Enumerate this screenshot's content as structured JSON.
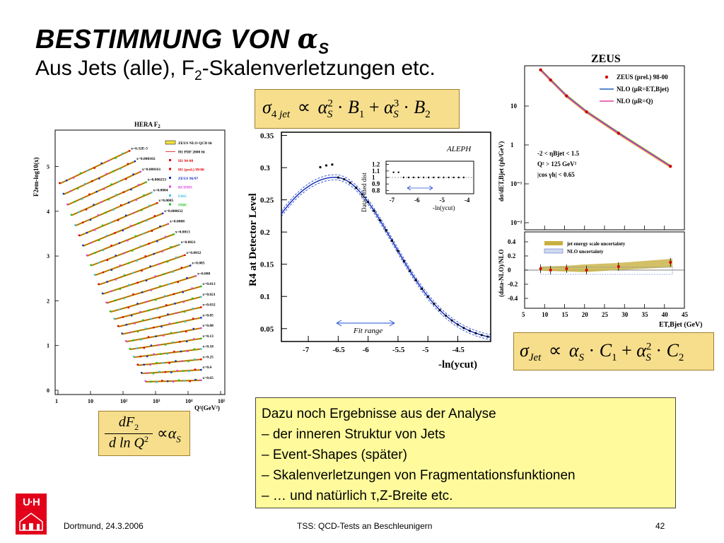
{
  "title": {
    "main": "BESTIMMUNG VON ",
    "alpha": "α",
    "sub": "S"
  },
  "subtitle": {
    "before": "Aus Jets (alle), F",
    "sub": "2",
    "after": "-Skalenverletzungen etc."
  },
  "formula_top": {
    "sigma": "σ",
    "sub1": "4 jet",
    "prop": "∝",
    "alpha": "α",
    "s": "S",
    "exp1": "2",
    "dot": "·",
    "b": "B",
    "b1": "1",
    "plus": "+",
    "exp2": "3",
    "b2": "2"
  },
  "formula_jet": {
    "sigma": "σ",
    "sub1": "Jet",
    "prop": "∝",
    "alpha": "α",
    "s": "S",
    "dot": "·",
    "c": "C",
    "c1": "1",
    "plus": "+",
    "exp2": "2",
    "c2": "2"
  },
  "formula_f2": {
    "num": "dF",
    "num_sub": "2",
    "den": "d ln Q",
    "den_sup": "2",
    "prop": "∝",
    "alpha": "α",
    "s": "S"
  },
  "info": {
    "lines": [
      "Dazu noch Ergebnisse aus der Analyse",
      "– der inneren Struktur von Jets",
      "– Event-Shapes (später)",
      "– Skalenverletzungen von Fragmentationsfunktionen",
      "– … und natürlich τ,Z-Breite etc."
    ]
  },
  "footer": {
    "left": "Dortmund, 24.3.2006",
    "center": "TSS: QCD-Tests an Beschleunigern",
    "right": "42"
  },
  "logo": {
    "text": "U·H"
  },
  "hera": {
    "title": "HERA F",
    "title_sub": "2",
    "ylabel": "F2em-log10(x)",
    "xlabel": "Q²(GeV²)",
    "yticks": [
      "0",
      "1",
      "2",
      "3",
      "4",
      "5"
    ],
    "xticks": [
      "1",
      "10",
      "10²",
      "10³",
      "10⁴",
      "10⁵"
    ],
    "xlabels": [
      "x=6.32E-5",
      "x=0.000102",
      "x=0.000161",
      "x=0.000253",
      "x=0.0004",
      "x=0.0005",
      "x=0.000632",
      "x=0.0008",
      "x=0.0013",
      "x=0.0021",
      "x=0.0032",
      "x=0.005",
      "x=0.008",
      "x=0.013",
      "x=0.021",
      "x=0.032",
      "x=0.05",
      "x=0.08",
      "x=0.13",
      "x=0.18",
      "x=0.25",
      "x=0.4",
      "x=0.65"
    ],
    "legend": [
      "ZEUS NLO QCD fit",
      "H1 PDF 2000 fit",
      "H1 94-00",
      "H1 (prel.) 99/00",
      "ZEUS 96/97",
      "BCDMS",
      "E665",
      "NMC"
    ],
    "legend_colors": [
      "#d4c200",
      "#e04040",
      "#e00000",
      "#e00000",
      "#1030c0",
      "#e040e0",
      "#40c0e0",
      "#20c020"
    ]
  },
  "aleph": {
    "label": "ALEPH",
    "ylabel": "R4 at Detector Level",
    "xlabel": "-ln(ycut)",
    "yticks": [
      "0.05",
      "0.1",
      "0.15",
      "0.2",
      "0.25",
      "0.3",
      "0.35"
    ],
    "xticks": [
      "-7",
      "-6.5",
      "-6",
      "-5.5",
      "-5",
      "-4.5"
    ],
    "fit_range": "Fit range",
    "inset_ylabel": "Data/Fitted dist",
    "inset_yticks": [
      "0.8",
      "0.9",
      "1",
      "1.1",
      "1.2"
    ],
    "inset_xticks": [
      "-7",
      "-6",
      "-5",
      "-4"
    ],
    "inset_xlabel": "-ln(ycut)"
  },
  "zeus": {
    "title": "ZEUS",
    "ylabel": "dσ/dET,Bjet (pb/GeV)",
    "ylabel2": "(data-NLO)/NLO",
    "xlabel": "ET,Bjet (GeV)",
    "xticks": [
      "5",
      "10",
      "15",
      "20",
      "25",
      "30",
      "35",
      "40",
      "45"
    ],
    "yticks_top": [
      "10",
      "1",
      "10⁻¹",
      "10⁻²"
    ],
    "yticks_bottom": [
      "0.4",
      "0.2",
      "0",
      "-0.2",
      "-0.4"
    ],
    "legend": [
      "ZEUS (prel.) 98-00",
      "NLO (μR=ET,Bjet)",
      "NLO (μR=Q)"
    ],
    "legend_colors": [
      "#d00000",
      "#2060c0",
      "#e040a0"
    ],
    "cuts": [
      "-2 < ηBjet < 1.5",
      "Q² > 125 GeV²",
      "|cos γh| < 0.65"
    ],
    "legend2": [
      "jet energy scale uncertainty",
      "NLO uncertainty"
    ]
  }
}
